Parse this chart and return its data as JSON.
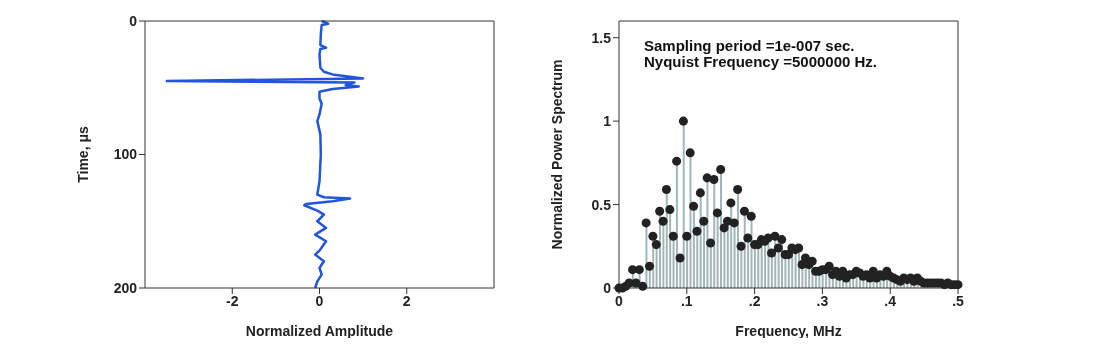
{
  "chart_data": [
    {
      "type": "line",
      "xlabel": "Normalized Amplitude",
      "ylabel": "Time, μs",
      "xlim": [
        -4,
        4
      ],
      "xticks": [
        -2,
        0,
        2
      ],
      "ylim": [
        200,
        0
      ],
      "yticks": [
        0,
        100,
        200
      ],
      "marker": "none",
      "series": [
        {
          "color": "#2255dd",
          "x": [
            0.05,
            0.2,
            0.05,
            0.03,
            0.02,
            0.15,
            0.02,
            0.0,
            0.02,
            0.1,
            0.3,
            1.0,
            -3.5,
            0.8,
            0.6,
            0.9,
            0.3,
            0.0,
            0.0,
            0.05,
            0.0,
            -0.05,
            0.02,
            0.03,
            0.0,
            -0.05,
            0.1,
            0.7,
            0.3,
            -0.3,
            -0.35,
            -0.05,
            0.1,
            -0.05,
            0.15,
            -0.1,
            0.15,
            0.0,
            -0.1,
            0.1,
            0.0,
            0.05,
            -0.05,
            -0.1
          ],
          "values": [
            0,
            2,
            3,
            10,
            18,
            20,
            21,
            25,
            35,
            38,
            40,
            43,
            45,
            46,
            48,
            49,
            51,
            53,
            58,
            62,
            70,
            75,
            85,
            100,
            120,
            130,
            132,
            133,
            135,
            137,
            138,
            142,
            145,
            150,
            155,
            160,
            165,
            172,
            175,
            180,
            185,
            190,
            195,
            200
          ]
        }
      ]
    },
    {
      "type": "lollipop",
      "xlabel": "Frequency, MHz",
      "ylabel": "Normalized Power Spectrum",
      "xlim": [
        0,
        0.5
      ],
      "xticks": [
        0,
        {
          "value": 0.1,
          "label": ".1"
        },
        {
          "value": 0.2,
          "label": ".2"
        },
        {
          "value": 0.3,
          "label": ".3"
        },
        {
          "value": 0.4,
          "label": ".4"
        },
        {
          "value": 0.5,
          "label": ".5"
        }
      ],
      "ylim": [
        0,
        1.6
      ],
      "yticks": [
        0,
        0.5,
        1,
        1.5
      ],
      "annotations": [
        "Sampling period =1e-007 sec.",
        "Nyquist Frequency =5000000 Hz."
      ],
      "series": [
        {
          "color": "#222222",
          "x": [
            0,
            0.005,
            0.01,
            0.015,
            0.02,
            0.025,
            0.03,
            0.035,
            0.04,
            0.045,
            0.05,
            0.055,
            0.06,
            0.065,
            0.07,
            0.075,
            0.08,
            0.085,
            0.09,
            0.095,
            0.1,
            0.105,
            0.11,
            0.115,
            0.12,
            0.125,
            0.13,
            0.135,
            0.14,
            0.145,
            0.15,
            0.155,
            0.16,
            0.165,
            0.17,
            0.175,
            0.18,
            0.185,
            0.19,
            0.195,
            0.2,
            0.205,
            0.21,
            0.215,
            0.22,
            0.225,
            0.23,
            0.235,
            0.24,
            0.245,
            0.25,
            0.255,
            0.26,
            0.265,
            0.27,
            0.275,
            0.28,
            0.285,
            0.29,
            0.295,
            0.3,
            0.305,
            0.31,
            0.315,
            0.32,
            0.325,
            0.33,
            0.335,
            0.34,
            0.345,
            0.35,
            0.355,
            0.36,
            0.365,
            0.37,
            0.375,
            0.38,
            0.385,
            0.39,
            0.395,
            0.4,
            0.405,
            0.41,
            0.415,
            0.42,
            0.425,
            0.43,
            0.435,
            0.44,
            0.445,
            0.45,
            0.455,
            0.46,
            0.465,
            0.47,
            0.475,
            0.48,
            0.485,
            0.49,
            0.495,
            0.5
          ],
          "values": [
            0.0,
            0.0,
            0.01,
            0.03,
            0.11,
            0.03,
            0.11,
            0.01,
            0.39,
            0.13,
            0.31,
            0.26,
            0.46,
            0.4,
            0.59,
            0.47,
            0.31,
            0.76,
            0.18,
            1.0,
            0.31,
            0.81,
            0.49,
            0.34,
            0.57,
            0.4,
            0.66,
            0.27,
            0.65,
            0.45,
            0.71,
            0.36,
            0.4,
            0.51,
            0.39,
            0.59,
            0.25,
            0.46,
            0.3,
            0.43,
            0.26,
            0.26,
            0.29,
            0.28,
            0.3,
            0.21,
            0.31,
            0.24,
            0.29,
            0.2,
            0.2,
            0.24,
            0.23,
            0.24,
            0.14,
            0.18,
            0.14,
            0.16,
            0.1,
            0.1,
            0.11,
            0.11,
            0.13,
            0.08,
            0.1,
            0.07,
            0.1,
            0.06,
            0.08,
            0.08,
            0.1,
            0.09,
            0.07,
            0.08,
            0.06,
            0.1,
            0.06,
            0.08,
            0.07,
            0.1,
            0.07,
            0.06,
            0.05,
            0.04,
            0.06,
            0.05,
            0.06,
            0.04,
            0.06,
            0.04,
            0.03,
            0.03,
            0.03,
            0.03,
            0.03,
            0.03,
            0.02,
            0.03,
            0.02,
            0.02,
            0.02
          ]
        }
      ]
    }
  ]
}
